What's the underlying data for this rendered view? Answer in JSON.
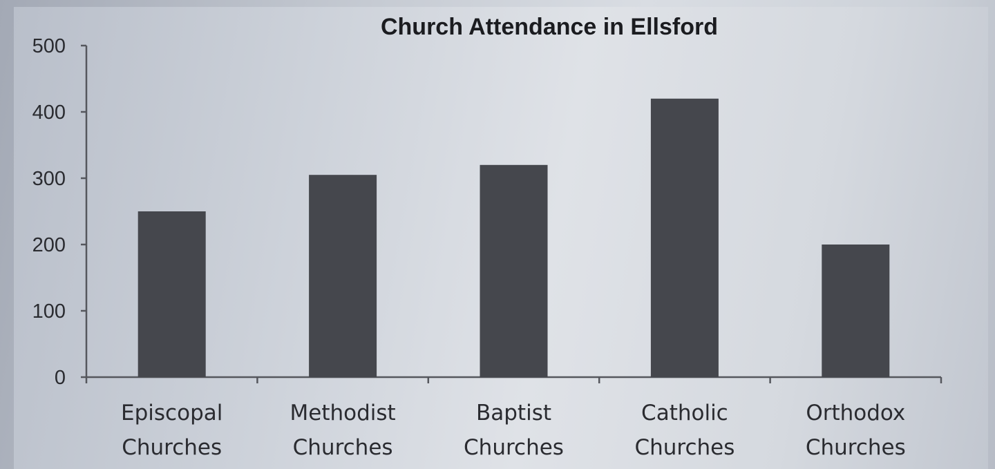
{
  "chart_data": {
    "type": "bar",
    "title": "Church Attendance in Ellsford",
    "xlabel": "",
    "ylabel": "",
    "categories": [
      [
        "Episcopal",
        "Churches"
      ],
      [
        "Methodist",
        "Churches"
      ],
      [
        "Baptist",
        "Churches"
      ],
      [
        "Catholic",
        "Churches"
      ],
      [
        "Orthodox",
        "Churches"
      ]
    ],
    "values": [
      250,
      305,
      320,
      420,
      200
    ],
    "ylim": [
      0,
      500
    ],
    "yticks": [
      "0",
      "100",
      "200",
      "300",
      "400",
      "500"
    ],
    "grid": false,
    "legend": false,
    "bar_color": "#45474d"
  }
}
